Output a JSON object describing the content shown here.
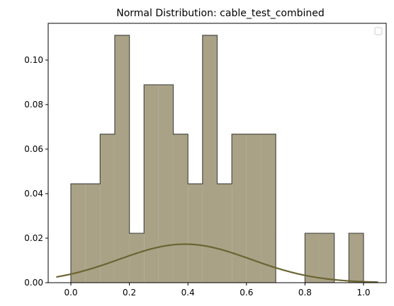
{
  "chart_data": {
    "type": "bar",
    "title": "Normal Distribution: cable_test_combined",
    "xlabel": "",
    "ylabel": "",
    "xlim": [
      -0.0775,
      1.0775
    ],
    "ylim": [
      0,
      0.1165
    ],
    "grid": false,
    "legend": "top-right",
    "bin_edges": [
      0.0,
      0.05,
      0.1,
      0.15,
      0.2,
      0.25,
      0.3,
      0.35,
      0.4,
      0.45,
      0.5,
      0.55,
      0.6,
      0.65,
      0.7,
      0.75,
      0.8,
      0.85,
      0.9,
      0.95,
      1.0
    ],
    "values": [
      0.0444,
      0.0444,
      0.0667,
      0.1111,
      0.0222,
      0.0889,
      0.0889,
      0.0667,
      0.0444,
      0.1111,
      0.0444,
      0.0667,
      0.0667,
      0.0667,
      0.0,
      0.0,
      0.0222,
      0.0222,
      0.0,
      0.0222
    ],
    "normal_curve": {
      "mean": 0.39,
      "std": 0.225,
      "peak": 0.0173,
      "x_range": [
        -0.05,
        1.05
      ]
    },
    "x_ticks": [
      "0.0",
      "0.2",
      "0.4",
      "0.6",
      "0.8",
      "1.0"
    ],
    "x_tick_values": [
      0.0,
      0.2,
      0.4,
      0.6,
      0.8,
      1.0
    ],
    "y_ticks": [
      "0.00",
      "0.02",
      "0.04",
      "0.06",
      "0.08",
      "0.10"
    ],
    "y_tick_values": [
      0.0,
      0.02,
      0.04,
      0.06,
      0.08,
      0.1
    ],
    "colors": {
      "bar_fill": "#a9a287",
      "bar_edge": "#4a4a44",
      "curve": "#6b6432",
      "axes": "#000000"
    }
  }
}
